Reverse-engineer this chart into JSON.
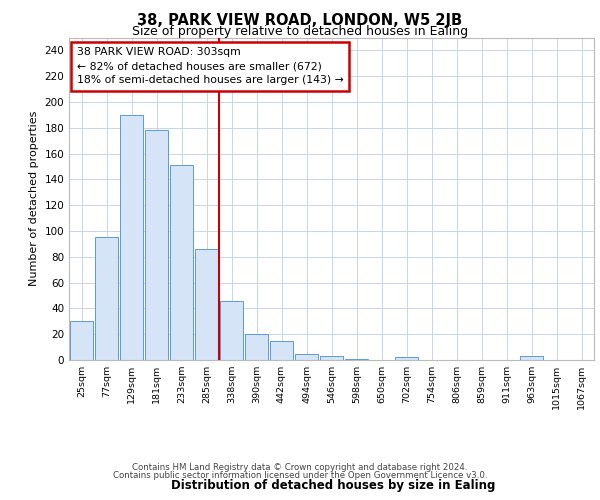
{
  "title1": "38, PARK VIEW ROAD, LONDON, W5 2JB",
  "title2": "Size of property relative to detached houses in Ealing",
  "xlabel": "Distribution of detached houses by size in Ealing",
  "ylabel": "Number of detached properties",
  "bar_color": "#d6e4f7",
  "bar_edge_color": "#5b9bd5",
  "categories": [
    "25sqm",
    "77sqm",
    "129sqm",
    "181sqm",
    "233sqm",
    "285sqm",
    "338sqm",
    "390sqm",
    "442sqm",
    "494sqm",
    "546sqm",
    "598sqm",
    "650sqm",
    "702sqm",
    "754sqm",
    "806sqm",
    "859sqm",
    "911sqm",
    "963sqm",
    "1015sqm",
    "1067sqm"
  ],
  "values": [
    30,
    95,
    190,
    178,
    151,
    86,
    46,
    20,
    15,
    5,
    3,
    1,
    0,
    2,
    0,
    0,
    0,
    0,
    3,
    0,
    0
  ],
  "ylim": [
    0,
    250
  ],
  "yticks": [
    0,
    20,
    40,
    60,
    80,
    100,
    120,
    140,
    160,
    180,
    200,
    220,
    240
  ],
  "redline_x": 5.5,
  "annotation_line1": "38 PARK VIEW ROAD: 303sqm",
  "annotation_line2": "← 82% of detached houses are smaller (672)",
  "annotation_line3": "18% of semi-detached houses are larger (143) →",
  "footer1": "Contains HM Land Registry data © Crown copyright and database right 2024.",
  "footer2": "Contains public sector information licensed under the Open Government Licence v3.0.",
  "bg_color": "#ffffff",
  "grid_color": "#c8d4e8",
  "annotation_box_color": "#ffffff",
  "annotation_box_edge": "#cc0000",
  "redline_color": "#cc0000"
}
